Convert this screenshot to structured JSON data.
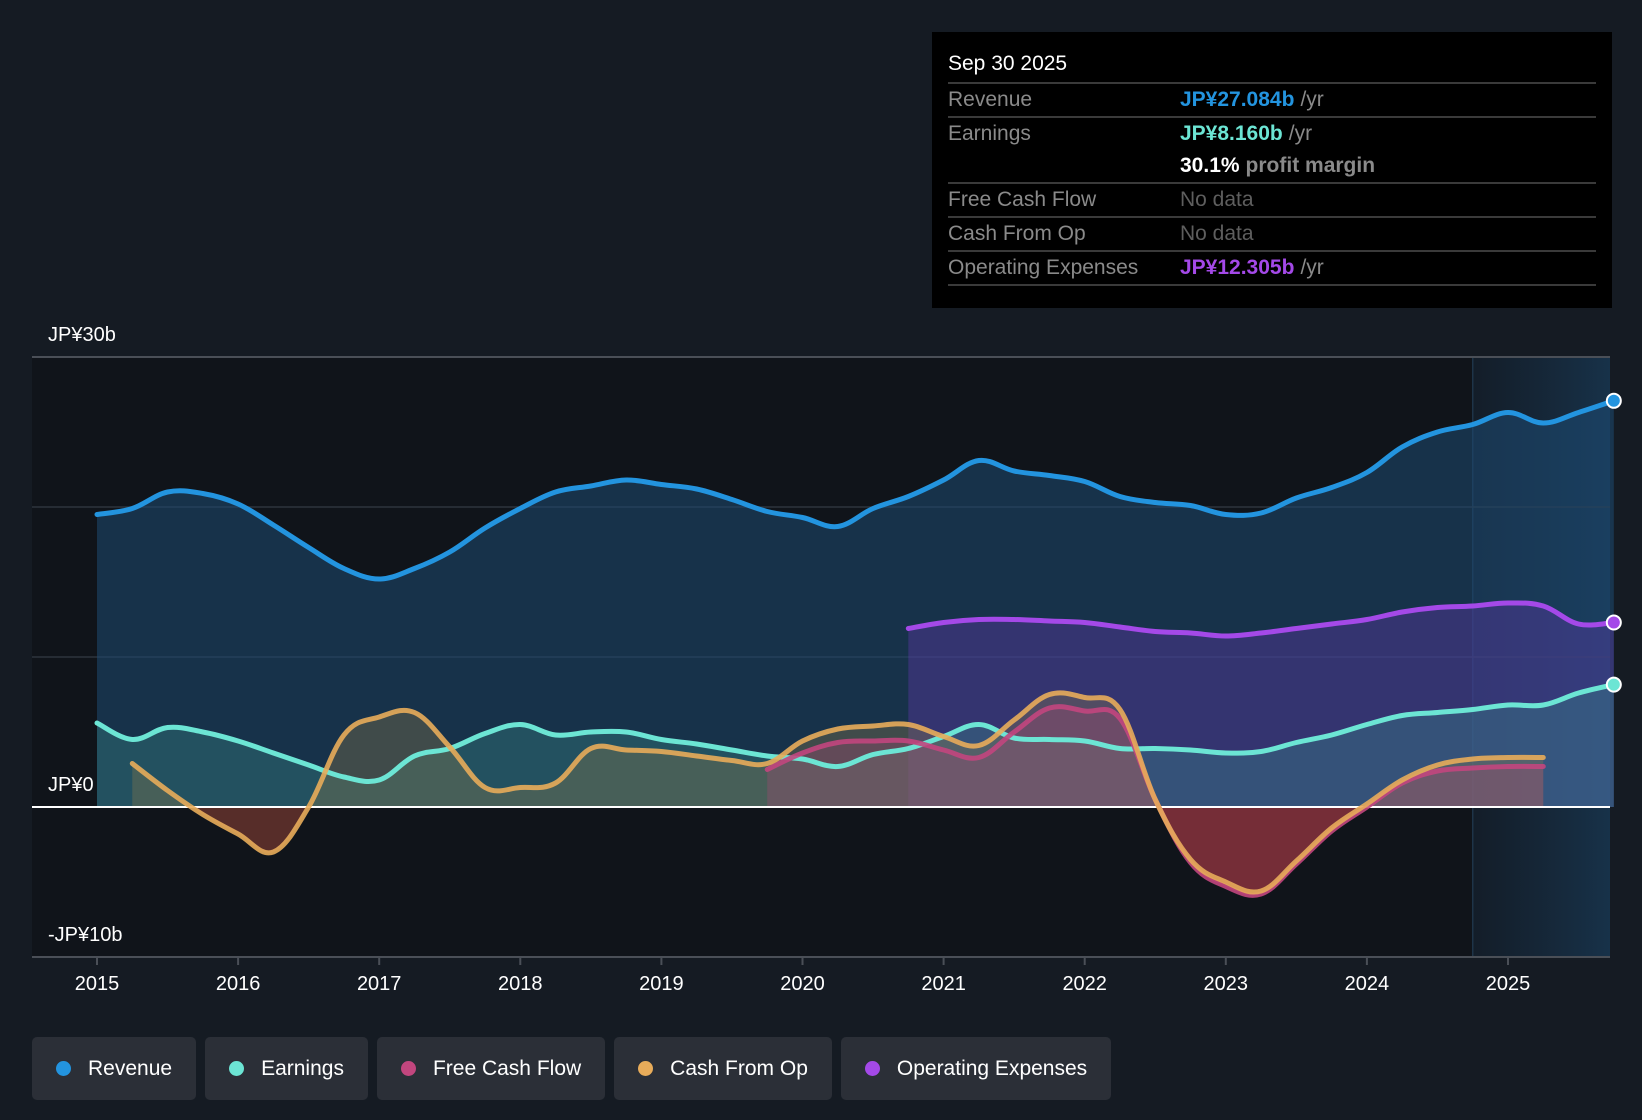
{
  "tooltip": {
    "date": "Sep 30 2025",
    "rows": [
      {
        "label": "Revenue",
        "value": "JP¥27.084b",
        "unit": "/yr",
        "color": "#2394df"
      },
      {
        "label": "Earnings",
        "value": "JP¥8.160b",
        "unit": "/yr",
        "color": "#6ce5d4"
      },
      {
        "label": "",
        "margin_pct": "30.1%",
        "margin_label": "profit margin"
      },
      {
        "label": "Free Cash Flow",
        "nodata": "No data"
      },
      {
        "label": "Cash From Op",
        "nodata": "No data"
      },
      {
        "label": "Operating Expenses",
        "value": "JP¥12.305b",
        "unit": "/yr",
        "color": "#a449e8"
      }
    ]
  },
  "legend": [
    {
      "label": "Revenue",
      "color": "#2394df"
    },
    {
      "label": "Earnings",
      "color": "#6ce5d4"
    },
    {
      "label": "Free Cash Flow",
      "color": "#c2467e"
    },
    {
      "label": "Cash From Op",
      "color": "#e8ac5a"
    },
    {
      "label": "Operating Expenses",
      "color": "#a449e8"
    }
  ],
  "chart_data": {
    "type": "area",
    "title": "",
    "xlabel": "",
    "ylabel": "",
    "currency": "JP¥",
    "y_unit": "b",
    "ylim": [
      -10,
      30
    ],
    "y_tick_labels": [
      {
        "value": 30,
        "label": "JP¥30b"
      },
      {
        "value": 0,
        "label": "JP¥0"
      },
      {
        "value": -10,
        "label": "-JP¥10b"
      }
    ],
    "y_gridlines": [
      30,
      20,
      10,
      0
    ],
    "xlim": [
      2014.55,
      2025.85
    ],
    "x_tick_labels": [
      "2015",
      "2016",
      "2017",
      "2018",
      "2019",
      "2020",
      "2021",
      "2022",
      "2023",
      "2024",
      "2025"
    ],
    "highlight_range": [
      2024.75,
      2025.75
    ],
    "grid": true,
    "legend_position": "bottom",
    "series": [
      {
        "name": "Revenue",
        "color": "#2394df",
        "end_marker": true,
        "points": [
          [
            2015.0,
            19.5
          ],
          [
            2015.25,
            19.9
          ],
          [
            2015.5,
            21.0
          ],
          [
            2015.75,
            20.9
          ],
          [
            2016.0,
            20.2
          ],
          [
            2016.25,
            18.8
          ],
          [
            2016.5,
            17.3
          ],
          [
            2016.75,
            15.9
          ],
          [
            2017.0,
            15.2
          ],
          [
            2017.25,
            15.9
          ],
          [
            2017.5,
            17.0
          ],
          [
            2017.75,
            18.6
          ],
          [
            2018.0,
            19.9
          ],
          [
            2018.25,
            21.0
          ],
          [
            2018.5,
            21.4
          ],
          [
            2018.75,
            21.8
          ],
          [
            2019.0,
            21.5
          ],
          [
            2019.25,
            21.2
          ],
          [
            2019.5,
            20.5
          ],
          [
            2019.75,
            19.7
          ],
          [
            2020.0,
            19.3
          ],
          [
            2020.25,
            18.7
          ],
          [
            2020.5,
            19.9
          ],
          [
            2020.75,
            20.7
          ],
          [
            2021.0,
            21.8
          ],
          [
            2021.25,
            23.1
          ],
          [
            2021.5,
            22.4
          ],
          [
            2021.75,
            22.1
          ],
          [
            2022.0,
            21.7
          ],
          [
            2022.25,
            20.7
          ],
          [
            2022.5,
            20.3
          ],
          [
            2022.75,
            20.1
          ],
          [
            2023.0,
            19.5
          ],
          [
            2023.25,
            19.6
          ],
          [
            2023.5,
            20.6
          ],
          [
            2023.75,
            21.3
          ],
          [
            2024.0,
            22.3
          ],
          [
            2024.25,
            24.0
          ],
          [
            2024.5,
            25.0
          ],
          [
            2024.75,
            25.5
          ],
          [
            2025.0,
            26.3
          ],
          [
            2025.25,
            25.6
          ],
          [
            2025.5,
            26.3
          ],
          [
            2025.75,
            27.08
          ]
        ]
      },
      {
        "name": "Earnings",
        "color": "#6ce5d4",
        "end_marker": true,
        "points": [
          [
            2015.0,
            5.6
          ],
          [
            2015.25,
            4.5
          ],
          [
            2015.5,
            5.3
          ],
          [
            2015.75,
            5.0
          ],
          [
            2016.0,
            4.4
          ],
          [
            2016.25,
            3.6
          ],
          [
            2016.5,
            2.8
          ],
          [
            2016.75,
            2.0
          ],
          [
            2017.0,
            1.8
          ],
          [
            2017.25,
            3.4
          ],
          [
            2017.5,
            3.9
          ],
          [
            2017.75,
            4.9
          ],
          [
            2018.0,
            5.5
          ],
          [
            2018.25,
            4.8
          ],
          [
            2018.5,
            5.0
          ],
          [
            2018.75,
            5.0
          ],
          [
            2019.0,
            4.5
          ],
          [
            2019.25,
            4.2
          ],
          [
            2019.5,
            3.8
          ],
          [
            2019.75,
            3.4
          ],
          [
            2020.0,
            3.2
          ],
          [
            2020.25,
            2.7
          ],
          [
            2020.5,
            3.5
          ],
          [
            2020.75,
            3.9
          ],
          [
            2021.0,
            4.7
          ],
          [
            2021.25,
            5.5
          ],
          [
            2021.5,
            4.6
          ],
          [
            2021.75,
            4.5
          ],
          [
            2022.0,
            4.4
          ],
          [
            2022.25,
            3.9
          ],
          [
            2022.5,
            3.9
          ],
          [
            2022.75,
            3.8
          ],
          [
            2023.0,
            3.6
          ],
          [
            2023.25,
            3.7
          ],
          [
            2023.5,
            4.3
          ],
          [
            2023.75,
            4.8
          ],
          [
            2024.0,
            5.5
          ],
          [
            2024.25,
            6.1
          ],
          [
            2024.5,
            6.3
          ],
          [
            2024.75,
            6.5
          ],
          [
            2025.0,
            6.8
          ],
          [
            2025.25,
            6.8
          ],
          [
            2025.5,
            7.6
          ],
          [
            2025.75,
            8.16
          ]
        ]
      },
      {
        "name": "Free Cash Flow",
        "color": "#c2467e",
        "end_marker": false,
        "points": [
          [
            2019.75,
            2.5
          ],
          [
            2020.0,
            3.6
          ],
          [
            2020.25,
            4.3
          ],
          [
            2020.5,
            4.4
          ],
          [
            2020.75,
            4.4
          ],
          [
            2021.0,
            3.8
          ],
          [
            2021.25,
            3.3
          ],
          [
            2021.5,
            5.0
          ],
          [
            2021.75,
            6.6
          ],
          [
            2022.0,
            6.4
          ],
          [
            2022.25,
            5.9
          ],
          [
            2022.5,
            0.5
          ],
          [
            2022.75,
            -3.7
          ],
          [
            2023.0,
            -5.3
          ],
          [
            2023.25,
            -5.8
          ],
          [
            2023.5,
            -3.8
          ],
          [
            2023.75,
            -1.6
          ],
          [
            2024.0,
            0.0
          ],
          [
            2024.25,
            1.6
          ],
          [
            2024.5,
            2.4
          ],
          [
            2024.75,
            2.6
          ],
          [
            2025.0,
            2.7
          ],
          [
            2025.25,
            2.7
          ]
        ]
      },
      {
        "name": "Cash From Op",
        "color": "#e8ac5a",
        "end_marker": false,
        "points": [
          [
            2015.25,
            2.9
          ],
          [
            2015.5,
            1.1
          ],
          [
            2015.75,
            -0.5
          ],
          [
            2016.0,
            -1.8
          ],
          [
            2016.25,
            -3.0
          ],
          [
            2016.5,
            0.0
          ],
          [
            2016.75,
            4.8
          ],
          [
            2017.0,
            6.0
          ],
          [
            2017.25,
            6.3
          ],
          [
            2017.5,
            4.0
          ],
          [
            2017.75,
            1.3
          ],
          [
            2018.0,
            1.3
          ],
          [
            2018.25,
            1.6
          ],
          [
            2018.5,
            3.9
          ],
          [
            2018.75,
            3.8
          ],
          [
            2019.0,
            3.7
          ],
          [
            2019.25,
            3.4
          ],
          [
            2019.5,
            3.1
          ],
          [
            2019.75,
            2.9
          ],
          [
            2020.0,
            4.4
          ],
          [
            2020.25,
            5.2
          ],
          [
            2020.5,
            5.4
          ],
          [
            2020.75,
            5.5
          ],
          [
            2021.0,
            4.7
          ],
          [
            2021.25,
            4.1
          ],
          [
            2021.5,
            5.8
          ],
          [
            2021.75,
            7.5
          ],
          [
            2022.0,
            7.3
          ],
          [
            2022.25,
            6.5
          ],
          [
            2022.5,
            0.5
          ],
          [
            2022.75,
            -3.5
          ],
          [
            2023.0,
            -5.0
          ],
          [
            2023.25,
            -5.6
          ],
          [
            2023.5,
            -3.6
          ],
          [
            2023.75,
            -1.4
          ],
          [
            2024.0,
            0.2
          ],
          [
            2024.25,
            1.8
          ],
          [
            2024.5,
            2.8
          ],
          [
            2024.75,
            3.2
          ],
          [
            2025.0,
            3.3
          ],
          [
            2025.25,
            3.3
          ]
        ]
      },
      {
        "name": "Operating Expenses",
        "color": "#a449e8",
        "end_marker": true,
        "points": [
          [
            2020.75,
            11.9
          ],
          [
            2021.0,
            12.3
          ],
          [
            2021.25,
            12.5
          ],
          [
            2021.5,
            12.5
          ],
          [
            2021.75,
            12.4
          ],
          [
            2022.0,
            12.3
          ],
          [
            2022.25,
            12.0
          ],
          [
            2022.5,
            11.7
          ],
          [
            2022.75,
            11.6
          ],
          [
            2023.0,
            11.4
          ],
          [
            2023.25,
            11.6
          ],
          [
            2023.5,
            11.9
          ],
          [
            2023.75,
            12.2
          ],
          [
            2024.0,
            12.5
          ],
          [
            2024.25,
            13.0
          ],
          [
            2024.5,
            13.3
          ],
          [
            2024.75,
            13.4
          ],
          [
            2025.0,
            13.6
          ],
          [
            2025.25,
            13.4
          ],
          [
            2025.5,
            12.2
          ],
          [
            2025.75,
            12.3
          ]
        ]
      }
    ]
  }
}
